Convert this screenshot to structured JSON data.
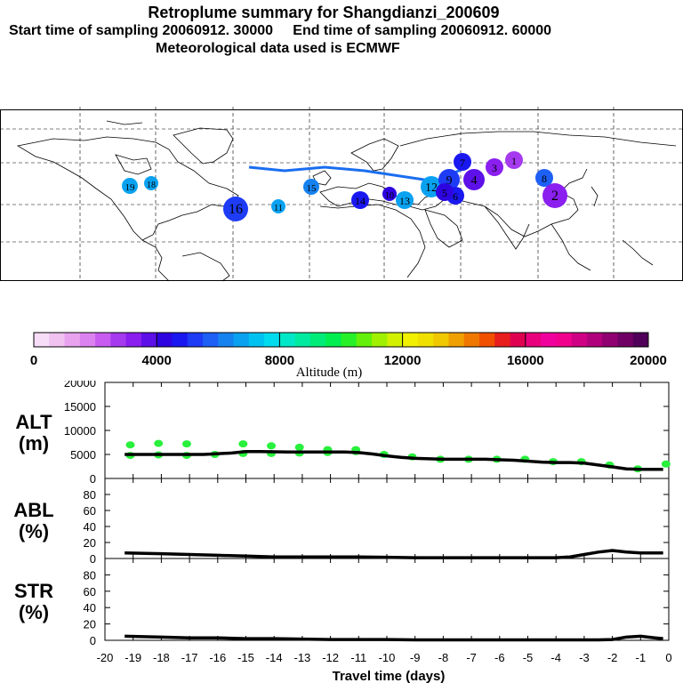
{
  "header": {
    "title": "Retroplume summary for Shangdianzi_200609",
    "sampling_line": "Start time of sampling 20060912. 30000     End time of sampling 20060912. 60000",
    "met_line": "Meteorological data used is ECMWF"
  },
  "map": {
    "plume_labels": [
      "19",
      "18",
      "16",
      "15",
      "14",
      "13",
      "12",
      "11",
      "10",
      "9",
      "8",
      "7",
      "6",
      "5",
      "4",
      "3",
      "2",
      "1"
    ],
    "clusters": [
      {
        "label": "19",
        "day": 19,
        "alt": 6500
      },
      {
        "label": "18",
        "day": 18,
        "alt": 6600
      },
      {
        "label": "16",
        "day": 16,
        "alt": 5000
      },
      {
        "label": "15",
        "day": 15,
        "alt": 6000
      },
      {
        "label": "14",
        "day": 14,
        "alt": 4800
      },
      {
        "label": "13",
        "day": 13,
        "alt": 6500
      },
      {
        "label": "12",
        "day": 12,
        "alt": 6800
      },
      {
        "label": "11",
        "day": 11,
        "alt": 6600
      },
      {
        "label": "10",
        "day": 10,
        "alt": 4300
      },
      {
        "label": "9",
        "day": 9,
        "alt": 5200
      },
      {
        "label": "8",
        "day": 8,
        "alt": 5600
      },
      {
        "label": "7",
        "day": 7,
        "alt": 4700
      },
      {
        "label": "6",
        "day": 6,
        "alt": 4500
      },
      {
        "label": "5",
        "day": 5,
        "alt": 4200
      },
      {
        "label": "4",
        "day": 4,
        "alt": 3500
      },
      {
        "label": "3",
        "day": 3,
        "alt": 3300
      },
      {
        "label": "2",
        "day": 2,
        "alt": 3000
      },
      {
        "label": "1",
        "day": 1,
        "alt": 2500
      }
    ]
  },
  "colorbar": {
    "title": "Altitude (m)",
    "tick_labels": [
      "0",
      "4000",
      "8000",
      "12000",
      "16000",
      "20000"
    ],
    "colors": [
      "#f7ddf7",
      "#f0c2f0",
      "#e8a3ef",
      "#dc82f0",
      "#c85cf0",
      "#a53aef",
      "#8a1fef",
      "#5d10e8",
      "#2e05e0",
      "#1a18f0",
      "#1e3cf6",
      "#1e5ff6",
      "#1682f0",
      "#0aa2f0",
      "#00c2f0",
      "#00dcee",
      "#00e8c8",
      "#00eaa0",
      "#00ec78",
      "#00ee50",
      "#28f028",
      "#64f00a",
      "#a0f000",
      "#d2f000",
      "#f0f000",
      "#f0e000",
      "#f0c800",
      "#f0a000",
      "#f07800",
      "#f05000",
      "#e81e1e",
      "#e00050",
      "#e8007c",
      "#f0009c",
      "#f0008c",
      "#d00084",
      "#b0007c",
      "#900070",
      "#700064",
      "#500058"
    ]
  },
  "chart_data": [
    {
      "type": "line",
      "panel": "ALT",
      "ylabel_line1": "ALT",
      "ylabel_line2": "(m)",
      "ylim": [
        0,
        20000
      ],
      "y_ticks": [
        "0",
        "5000",
        "10000",
        "15000",
        "20000"
      ],
      "x_day": [
        -19.3,
        -18.5,
        -17.5,
        -16.5,
        -15.5,
        -15,
        -14.5,
        -13.5,
        -12.5,
        -11.5,
        -11,
        -10.5,
        -10,
        -9.5,
        -9,
        -8.5,
        -8,
        -7.5,
        -7,
        -6.5,
        -6,
        -5.5,
        -5,
        -4.5,
        -4,
        -3.5,
        -3,
        -2.5,
        -2,
        -1.5,
        -1,
        -0.2
      ],
      "y_mean": [
        5000,
        5000,
        5000,
        5000,
        5300,
        5600,
        5600,
        5500,
        5500,
        5500,
        5400,
        5100,
        4700,
        4400,
        4200,
        4100,
        4000,
        4000,
        4000,
        4000,
        3900,
        3800,
        3600,
        3400,
        3300,
        3300,
        3200,
        2800,
        2400,
        2000,
        1900,
        1900
      ],
      "scatter": {
        "days": [
          -19.1,
          -19.1,
          -18.1,
          -18.1,
          -17.1,
          -17.1,
          -16.1,
          -15.1,
          -15.1,
          -14.1,
          -14.1,
          -13.1,
          -13.1,
          -12.1,
          -12.1,
          -11.1,
          -11.1,
          -10.1,
          -9.1,
          -8.1,
          -7.1,
          -6.1,
          -5.1,
          -4.1,
          -3.1,
          -2.1,
          -1.1,
          -0.1
        ],
        "altitudes": [
          7000,
          4800,
          7300,
          4900,
          7200,
          4800,
          5000,
          7200,
          5200,
          6800,
          5200,
          6500,
          5300,
          6000,
          5400,
          6000,
          5600,
          5000,
          4500,
          4000,
          4000,
          4000,
          4000,
          3500,
          3500,
          2800,
          2000,
          3000
        ],
        "color": "#28f03c"
      }
    },
    {
      "type": "line",
      "panel": "ABL",
      "ylabel_line1": "ABL",
      "ylabel_line2": "(%)",
      "ylim": [
        0,
        100
      ],
      "y_ticks": [
        "0",
        "20",
        "40",
        "60",
        "80"
      ],
      "x_day": [
        -19.3,
        -18,
        -17,
        -16,
        -15,
        -14,
        -13,
        -12,
        -11,
        -10,
        -9,
        -8,
        -7,
        -6,
        -5,
        -4,
        -3.5,
        -3,
        -2.5,
        -2,
        -1.5,
        -1,
        -0.2
      ],
      "values": [
        7,
        6,
        5,
        4,
        3,
        2,
        2,
        2,
        2,
        1.5,
        1,
        1,
        1,
        1,
        1,
        1,
        2,
        5,
        8,
        10,
        8,
        7,
        7
      ]
    },
    {
      "type": "line",
      "panel": "STR",
      "ylabel_line1": "STR",
      "ylabel_line2": "(%)",
      "ylim": [
        0,
        100
      ],
      "y_ticks": [
        "0",
        "20",
        "40",
        "60",
        "80"
      ],
      "x_day": [
        -19.3,
        -18,
        -17,
        -16,
        -15,
        -14,
        -13,
        -12,
        -11,
        -10,
        -9,
        -8,
        -7,
        -6,
        -5,
        -4,
        -3,
        -2.5,
        -2,
        -1.5,
        -1,
        -0.5,
        -0.2
      ],
      "values": [
        5,
        4,
        3,
        3,
        2,
        2,
        1.5,
        1,
        1,
        1,
        0.5,
        0.5,
        0.5,
        0.5,
        0.5,
        0.5,
        0.5,
        0.5,
        1,
        4,
        5,
        3,
        2
      ]
    }
  ],
  "xaxis": {
    "label": "Travel time (days)",
    "tick_labels": [
      "-20",
      "-19",
      "-18",
      "-17",
      "-16",
      "-15",
      "-14",
      "-13",
      "-12",
      "-11",
      "-10",
      "-9",
      "-8",
      "-7",
      "-6",
      "-5",
      "-4",
      "-3",
      "-2",
      "-1",
      "0"
    ],
    "tick_days": [
      -20,
      -19,
      -18,
      -17,
      -16,
      -15,
      -14,
      -13,
      -12,
      -11,
      -10,
      -9,
      -8,
      -7,
      -6,
      -5,
      -4,
      -3,
      -2,
      -1,
      0
    ]
  }
}
